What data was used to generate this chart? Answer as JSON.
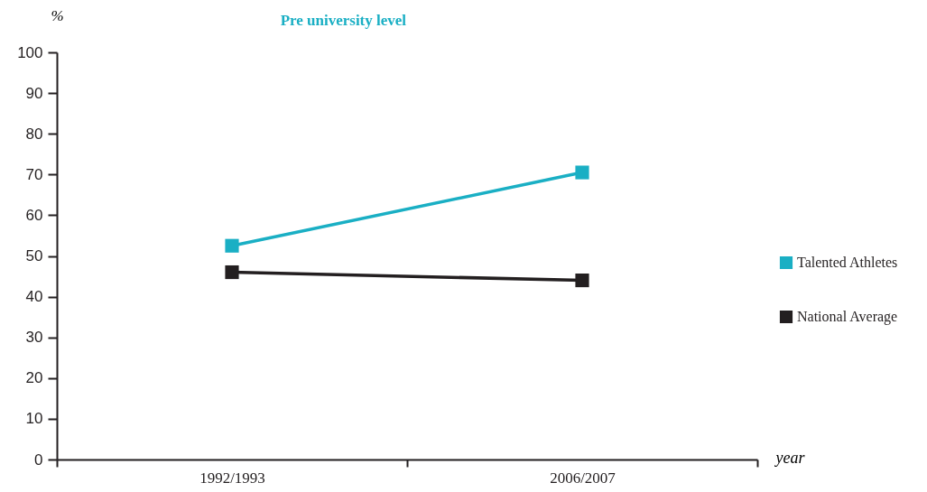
{
  "chart_data": {
    "type": "line",
    "title": "Pre university level",
    "xlabel": "year",
    "ylabel": "%",
    "categories": [
      "1992/1993",
      "2006/2007"
    ],
    "series": [
      {
        "name": "Talented Athletes",
        "color": "#1aafc4",
        "values": [
          52.5,
          70.5
        ]
      },
      {
        "name": "National Average",
        "color": "#231f20",
        "values": [
          46,
          44
        ]
      }
    ],
    "ylim": [
      0,
      100
    ],
    "yticks": [
      0,
      10,
      20,
      30,
      40,
      50,
      60,
      70,
      80,
      90,
      100
    ],
    "grid": false,
    "legend": "right",
    "marker": "square"
  }
}
